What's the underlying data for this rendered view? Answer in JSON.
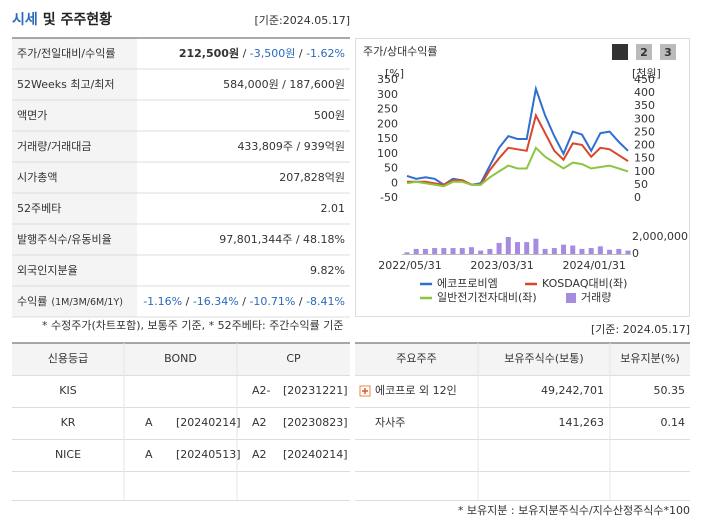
{
  "header": {
    "title_main": "시세",
    "title_rest": "및 주주현황",
    "date": "[기준:2024.05.17]"
  },
  "summary": {
    "separator": " / ",
    "rows": [
      {
        "label": "주가/전일대비/수익률",
        "values": [
          "212,500원",
          "-3,500원",
          "-1.62%"
        ]
      },
      {
        "label": "52Weeks 최고/최저",
        "values": [
          "584,000원",
          "187,600원"
        ]
      },
      {
        "label": "액면가",
        "values": [
          "500원"
        ]
      },
      {
        "label": "거래량/거래대금",
        "values": [
          "433,809주",
          "939억원"
        ]
      },
      {
        "label": "시가총액",
        "values": [
          "207,828억원"
        ]
      },
      {
        "label": "52주베타",
        "values": [
          "2.01"
        ]
      },
      {
        "label": "발행주식수/유동비율",
        "values": [
          "97,801,344주",
          "48.18%"
        ]
      },
      {
        "label": "외국인지분율",
        "values": [
          "9.82%"
        ]
      },
      {
        "label": "수익률",
        "sublabel": "(1M/3M/6M/1Y)",
        "values": [
          "-1.16%",
          "-16.34%",
          "-10.71%",
          "-8.41%"
        ]
      }
    ],
    "note": "* 수정주가(차트포함), 보통주 기준, * 52주베타: 주간수익률 기준"
  },
  "chart_data": {
    "type": "line",
    "title": "주가/상대수익률",
    "buttons": [
      "1",
      "2",
      "3"
    ],
    "ylabel": "[%]",
    "y2label": "[천원]",
    "ylim": [
      -50,
      350
    ],
    "yticks": [
      350,
      300,
      250,
      200,
      150,
      100,
      50,
      0,
      -50
    ],
    "y2lim": [
      0,
      450
    ],
    "y2ticks": [
      450,
      400,
      350,
      300,
      250,
      200,
      150,
      100,
      50,
      0
    ],
    "vol_lim": [
      0,
      2000000
    ],
    "vol_ticks": [
      {
        "value": 2000000,
        "label": "2,000,000"
      },
      0
    ],
    "categories": [
      "2022/05/31",
      null,
      null,
      null,
      null,
      null,
      null,
      null,
      null,
      null,
      "2023/03/31",
      null,
      null,
      null,
      null,
      null,
      null,
      null,
      null,
      null,
      "2024/01/31",
      null,
      null,
      null,
      null
    ],
    "series": [
      {
        "name": "에코프로비엠",
        "color": "#2e6fd0",
        "values": [
          25,
          15,
          20,
          15,
          -5,
          15,
          10,
          -5,
          0,
          60,
          120,
          160,
          150,
          150,
          320,
          230,
          160,
          100,
          175,
          165,
          110,
          170,
          175,
          140,
          110
        ]
      },
      {
        "name": "KOSDAQ대비(좌)",
        "color": "#d9472b",
        "values": [
          5,
          5,
          5,
          0,
          -5,
          10,
          10,
          -5,
          -5,
          45,
          85,
          120,
          115,
          110,
          230,
          170,
          110,
          80,
          135,
          130,
          90,
          120,
          115,
          95,
          75
        ]
      },
      {
        "name": "일반전기전자대비(좌)",
        "color": "#8cc63f",
        "values": [
          0,
          5,
          0,
          -5,
          -10,
          5,
          5,
          -5,
          -5,
          20,
          40,
          60,
          50,
          50,
          120,
          90,
          70,
          50,
          70,
          65,
          50,
          55,
          60,
          50,
          40
        ]
      }
    ],
    "volume": {
      "name": "거래량",
      "color": "#a68be0",
      "values": [
        200000,
        600000,
        600000,
        700000,
        700000,
        700000,
        700000,
        800000,
        400000,
        600000,
        1300000,
        2000000,
        1400000,
        1400000,
        1800000,
        600000,
        700000,
        1100000,
        1000000,
        600000,
        700000,
        900000,
        500000,
        600000,
        400000
      ]
    }
  },
  "credit": {
    "headers": [
      "신용등급",
      "BOND",
      "CP"
    ],
    "rows": [
      {
        "agency": "KIS",
        "bond": null,
        "cp": {
          "grade": "A2-",
          "date": "[20231221]"
        }
      },
      {
        "agency": "KR",
        "bond": {
          "grade": "A",
          "date": "[20240214]"
        },
        "cp": {
          "grade": "A2",
          "date": "[20230823]"
        }
      },
      {
        "agency": "NICE",
        "bond": {
          "grade": "A",
          "date": "[20240513]"
        },
        "cp": {
          "grade": "A2",
          "date": "[20240214]"
        }
      }
    ]
  },
  "holders": {
    "date": "[기준: 2024.05.17]",
    "headers": [
      "주요주주",
      "보유주식수(보통)",
      "보유지분(%)"
    ],
    "rows": [
      [
        "에코프로 외 12인",
        "49,242,701",
        "50.35"
      ],
      [
        "자사주",
        "141,263",
        "0.14"
      ]
    ],
    "note": "* 보유지분 : 보유지분주식수/지수산정주식수*100"
  }
}
